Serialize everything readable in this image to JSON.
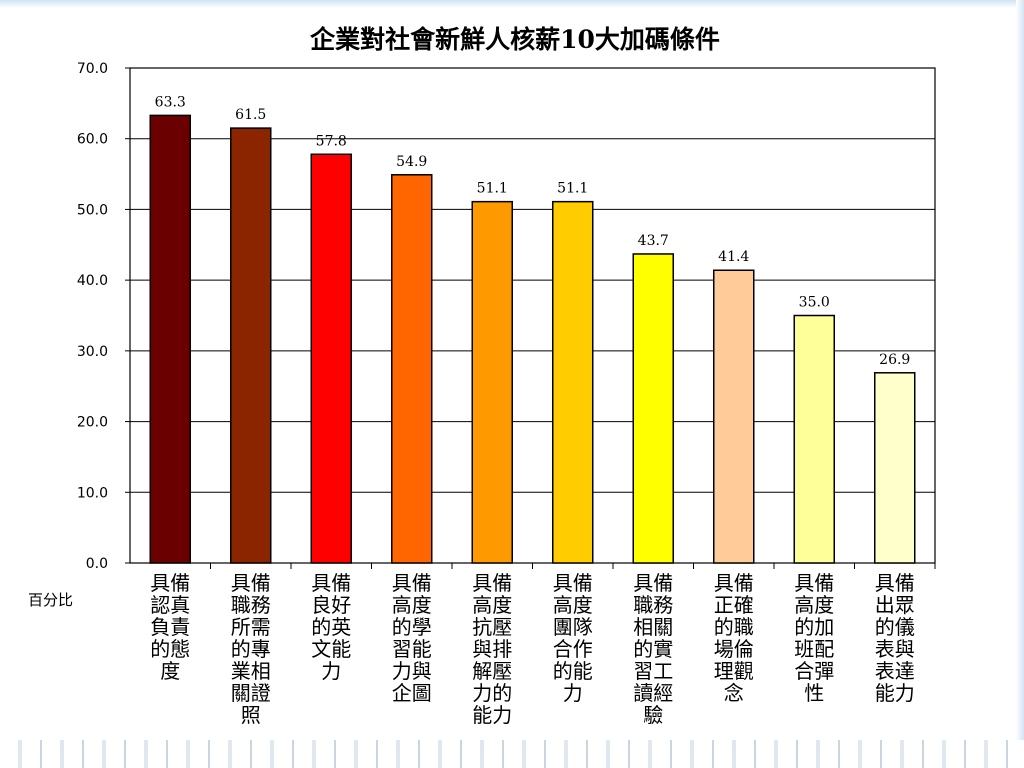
{
  "chart_data": {
    "type": "bar",
    "title": "企業對社會新鮮人核薪10大加碼條件",
    "ylabel": "百分比",
    "ylim": [
      0,
      70
    ],
    "yticks": [
      "0.0",
      "10.0",
      "20.0",
      "30.0",
      "40.0",
      "50.0",
      "60.0",
      "70.0"
    ],
    "grid": true,
    "categories": [
      [
        "具備",
        "認真",
        "負責",
        "的態",
        "度"
      ],
      [
        "具備",
        "職務",
        "所需",
        "的專",
        "業相",
        "關證",
        "照"
      ],
      [
        "具備",
        "良好",
        "的英",
        "文能",
        "力"
      ],
      [
        "具備",
        "高度",
        "的學",
        "習能",
        "力與",
        "企圖"
      ],
      [
        "具備",
        "高度",
        "抗壓",
        "與排",
        "解壓",
        "力的",
        "能力"
      ],
      [
        "具備",
        "高度",
        "團隊",
        "合作",
        "的能",
        "力"
      ],
      [
        "具備",
        "職務",
        "相關",
        "的實",
        "習工",
        "讀經",
        "驗"
      ],
      [
        "具備",
        "正確",
        "的職",
        "場倫",
        "理觀",
        "念"
      ],
      [
        "具備",
        "高度",
        "的加",
        "班配",
        "合彈",
        "性"
      ],
      [
        "具備",
        "出眾",
        "的儀",
        "表與",
        "表達",
        "能力"
      ]
    ],
    "values": [
      63.3,
      61.5,
      57.8,
      54.9,
      51.1,
      51.1,
      43.7,
      41.4,
      35.0,
      26.9
    ],
    "value_labels": [
      "63.3",
      "61.5",
      "57.8",
      "54.9",
      "51.1",
      "51.1",
      "43.7",
      "41.4",
      "35.0",
      "26.9"
    ],
    "colors": [
      "#6b0000",
      "#8b2500",
      "#ff0000",
      "#ff6600",
      "#ff9900",
      "#ffcc00",
      "#ffff00",
      "#ffcc99",
      "#ffff99",
      "#ffffcc"
    ]
  }
}
